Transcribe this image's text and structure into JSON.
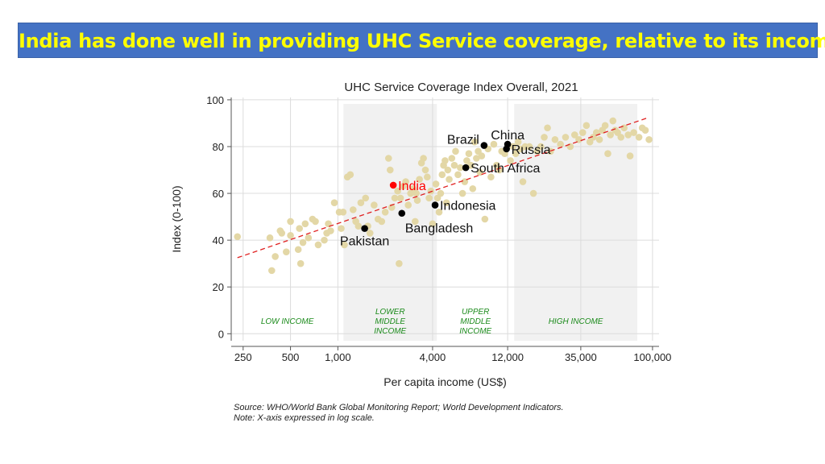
{
  "slide": {
    "title": "India has done well in providing UHC Service coverage, relative to its income…"
  },
  "source_notes": {
    "line1": "Source: WHO/World Bank Global Monitoring Report; World Development Indicators.",
    "line2": "Note: X-axis expressed in log scale."
  },
  "colors": {
    "banner_bg": "#4472c4",
    "banner_text": "#ffff00",
    "scatter_point": "#e3d7a6",
    "highlight_country": "#000000",
    "india": "#ff0000",
    "trend_line": "#e02020",
    "band_label": "#1a8a1a",
    "band_shade": "#f1f1f1"
  },
  "chart_data": {
    "type": "scatter",
    "title": "UHC Service Coverage Index Overall, 2021",
    "xlabel": "Per capita income (US$)",
    "ylabel": "Index (0-100)",
    "x_scale": "log",
    "xlim": [
      210,
      110000
    ],
    "ylim": [
      -3,
      101
    ],
    "x_ticks": [
      {
        "value": 250,
        "label": "250"
      },
      {
        "value": 500,
        "label": "500"
      },
      {
        "value": 1000,
        "label": "1,000"
      },
      {
        "value": 4000,
        "label": "4,000"
      },
      {
        "value": 12000,
        "label": "12,000"
      },
      {
        "value": 35000,
        "label": "35,000"
      },
      {
        "value": 100000,
        "label": "100,000"
      }
    ],
    "y_ticks": [
      0,
      20,
      40,
      60,
      80,
      100
    ],
    "grid": true,
    "income_bands": [
      {
        "label_lines": [
          "LOW INCOME"
        ],
        "x_from": 210,
        "x_to": 1085,
        "shaded": false
      },
      {
        "label_lines": [
          "LOWER",
          "MIDDLE",
          "INCOME"
        ],
        "x_from": 1085,
        "x_to": 4255,
        "shaded": true
      },
      {
        "label_lines": [
          "UPPER",
          "MIDDLE",
          "INCOME"
        ],
        "x_from": 4255,
        "x_to": 13205,
        "shaded": false
      },
      {
        "label_lines": [
          "HIGH INCOME"
        ],
        "x_from": 13205,
        "x_to": 80000,
        "shaded": true
      }
    ],
    "trend_line": {
      "x": [
        230,
        95000
      ],
      "y": [
        32.5,
        92.5
      ]
    },
    "highlighted": [
      {
        "name": "China",
        "x": 12000,
        "y": 81,
        "label": "China",
        "color": "black",
        "label_pos": "above"
      },
      {
        "name": "Brazil",
        "x": 8500,
        "y": 80.5,
        "label": "Brazil",
        "color": "black",
        "label_pos": "left"
      },
      {
        "name": "Russia",
        "x": 11800,
        "y": 79,
        "label": "Russia",
        "color": "black",
        "label_pos": "right"
      },
      {
        "name": "South Africa",
        "x": 6500,
        "y": 71,
        "label": "South Africa",
        "color": "black",
        "label_pos": "right"
      },
      {
        "name": "India",
        "x": 2250,
        "y": 63.5,
        "label": "India",
        "color": "red",
        "label_pos": "right"
      },
      {
        "name": "Indonesia",
        "x": 4150,
        "y": 55,
        "label": "Indonesia",
        "color": "black",
        "label_pos": "right"
      },
      {
        "name": "Bangladesh",
        "x": 2550,
        "y": 51.5,
        "label": "Bangladesh",
        "color": "black",
        "label_pos": "below-right"
      },
      {
        "name": "Pakistan",
        "x": 1480,
        "y": 45,
        "label": "Pakistan",
        "color": "black",
        "label_pos": "below"
      }
    ],
    "points": [
      [
        230,
        41.5
      ],
      [
        370,
        41
      ],
      [
        380,
        27
      ],
      [
        400,
        33
      ],
      [
        430,
        44
      ],
      [
        440,
        43
      ],
      [
        470,
        35
      ],
      [
        500,
        48
      ],
      [
        500,
        42
      ],
      [
        560,
        36
      ],
      [
        570,
        45
      ],
      [
        580,
        30
      ],
      [
        600,
        39
      ],
      [
        620,
        47
      ],
      [
        650,
        41
      ],
      [
        690,
        49
      ],
      [
        720,
        48
      ],
      [
        750,
        38
      ],
      [
        820,
        40
      ],
      [
        850,
        43
      ],
      [
        870,
        47
      ],
      [
        900,
        44
      ],
      [
        950,
        56
      ],
      [
        1020,
        52
      ],
      [
        1050,
        45
      ],
      [
        1080,
        52
      ],
      [
        1100,
        38
      ],
      [
        1150,
        67
      ],
      [
        1200,
        68
      ],
      [
        1250,
        53
      ],
      [
        1300,
        48
      ],
      [
        1350,
        46
      ],
      [
        1400,
        56
      ],
      [
        1500,
        58
      ],
      [
        1550,
        46
      ],
      [
        1600,
        43
      ],
      [
        1700,
        55
      ],
      [
        1800,
        49
      ],
      [
        1900,
        48
      ],
      [
        2000,
        52
      ],
      [
        2100,
        75
      ],
      [
        2150,
        70
      ],
      [
        2200,
        54
      ],
      [
        2300,
        58
      ],
      [
        2400,
        61
      ],
      [
        2450,
        30
      ],
      [
        2500,
        58
      ],
      [
        2600,
        63
      ],
      [
        2700,
        65
      ],
      [
        2800,
        55
      ],
      [
        2900,
        60
      ],
      [
        3000,
        62
      ],
      [
        3100,
        48
      ],
      [
        3150,
        60
      ],
      [
        3200,
        57
      ],
      [
        3300,
        66
      ],
      [
        3400,
        73
      ],
      [
        3500,
        75
      ],
      [
        3600,
        70
      ],
      [
        3700,
        67
      ],
      [
        3800,
        58
      ],
      [
        3900,
        61
      ],
      [
        4000,
        47
      ],
      [
        4200,
        64
      ],
      [
        4300,
        58
      ],
      [
        4400,
        52
      ],
      [
        4500,
        60
      ],
      [
        4600,
        68
      ],
      [
        4700,
        72
      ],
      [
        4800,
        74
      ],
      [
        4900,
        56
      ],
      [
        5000,
        70
      ],
      [
        5100,
        66
      ],
      [
        5300,
        75
      ],
      [
        5500,
        72
      ],
      [
        5600,
        78
      ],
      [
        5800,
        68
      ],
      [
        6000,
        71
      ],
      [
        6200,
        60
      ],
      [
        6400,
        65
      ],
      [
        6600,
        74
      ],
      [
        6800,
        77
      ],
      [
        7000,
        72
      ],
      [
        7200,
        62
      ],
      [
        7400,
        82
      ],
      [
        7600,
        75
      ],
      [
        7800,
        78
      ],
      [
        8000,
        69
      ],
      [
        8200,
        76
      ],
      [
        8600,
        49
      ],
      [
        9000,
        79
      ],
      [
        9400,
        67
      ],
      [
        9800,
        81
      ],
      [
        10200,
        72
      ],
      [
        10600,
        70
      ],
      [
        11000,
        78
      ],
      [
        11500,
        77
      ],
      [
        12500,
        74
      ],
      [
        13000,
        80
      ],
      [
        13500,
        77
      ],
      [
        14000,
        82
      ],
      [
        14500,
        79
      ],
      [
        15000,
        65
      ],
      [
        15500,
        80
      ],
      [
        16500,
        80
      ],
      [
        17500,
        60
      ],
      [
        18500,
        78
      ],
      [
        19500,
        80
      ],
      [
        20500,
        84
      ],
      [
        21500,
        88
      ],
      [
        22500,
        78
      ],
      [
        24000,
        83
      ],
      [
        26000,
        81
      ],
      [
        28000,
        84
      ],
      [
        30000,
        80
      ],
      [
        32000,
        85
      ],
      [
        34000,
        83
      ],
      [
        36000,
        86
      ],
      [
        38000,
        89
      ],
      [
        40000,
        82
      ],
      [
        42000,
        84
      ],
      [
        44000,
        86
      ],
      [
        46000,
        83
      ],
      [
        48000,
        87
      ],
      [
        50000,
        89
      ],
      [
        52000,
        77
      ],
      [
        54000,
        85
      ],
      [
        56000,
        91
      ],
      [
        58000,
        87
      ],
      [
        60000,
        86
      ],
      [
        63000,
        84
      ],
      [
        66000,
        88
      ],
      [
        70000,
        85
      ],
      [
        72000,
        76
      ],
      [
        76000,
        86
      ],
      [
        82000,
        84
      ],
      [
        86000,
        88
      ],
      [
        90000,
        87
      ],
      [
        95000,
        83
      ]
    ]
  }
}
